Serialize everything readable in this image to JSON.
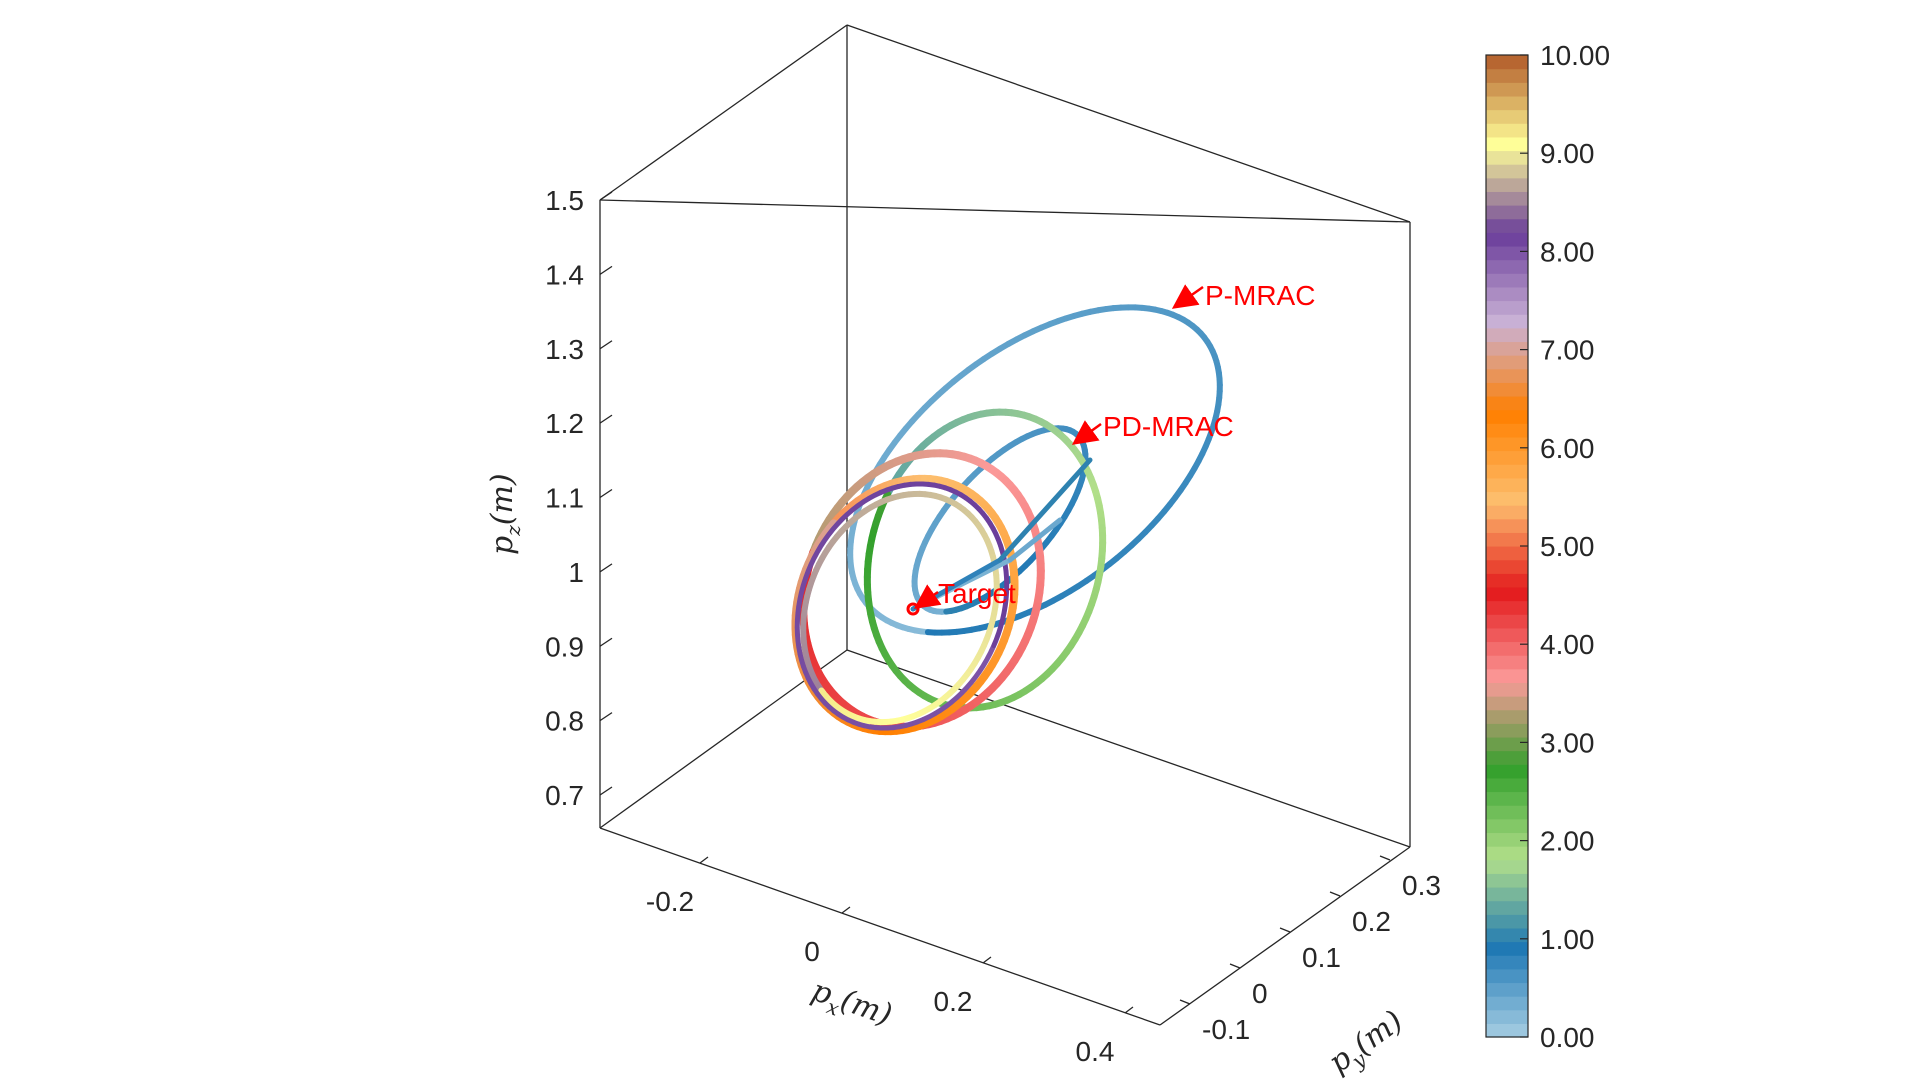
{
  "chart_data": {
    "type": "line",
    "title": "",
    "dimensions": "3d",
    "xlabel": "p_x(m)",
    "ylabel": "p_y(m)",
    "zlabel": "p_z(m)",
    "xlim": [
      -0.3,
      0.5
    ],
    "ylim": [
      -0.15,
      0.35
    ],
    "zlim": [
      0.65,
      1.5
    ],
    "x_ticks": [
      "-0.2",
      "0",
      "0.2",
      "0.4"
    ],
    "y_ticks": [
      "-0.1",
      "0",
      "0.1",
      "0.2",
      "0.3"
    ],
    "z_ticks": [
      "0.7",
      "0.8",
      "0.9",
      "1",
      "1.1",
      "1.2",
      "1.3",
      "1.4",
      "1.5"
    ],
    "colorbar": {
      "min": 0,
      "max": 10,
      "ticks": [
        "0.00",
        "1.00",
        "2.00",
        "3.00",
        "4.00",
        "5.00",
        "6.00",
        "7.00",
        "8.00",
        "9.00",
        "10.00"
      ],
      "colors": [
        "#a6cee3",
        "#1f78b4",
        "#b2df8a",
        "#33a02c",
        "#fb9a99",
        "#e31a1c",
        "#fdbf6f",
        "#ff7f00",
        "#cab2d6",
        "#6a3d9a",
        "#ffff99",
        "#b15928"
      ]
    },
    "target": {
      "label": "Target",
      "x": 0.05,
      "y": 0.0,
      "z": 0.95
    },
    "annotations": [
      "P-MRAC",
      "PD-MRAC"
    ],
    "grid": false,
    "series_summary": "Trajectory loops colored by time (0–10 s) converging to a circle of radius ~0.15 m around the target"
  }
}
